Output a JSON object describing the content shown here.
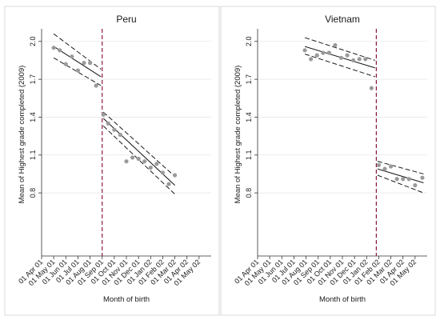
{
  "chart_data": [
    {
      "type": "scatter",
      "title": "Peru",
      "xlabel": "Month of birth",
      "ylabel": "Mean of Highest grade completed (2009)",
      "x_categories": [
        "01 Apr 01",
        "01 May 01",
        "01 Jun 01",
        "01 Jul 01",
        "01 Aug 01",
        "01 Sep 01",
        "01 Oct 01",
        "01 Nov 01",
        "01 Dec 01",
        "01 Jan 02",
        "01 Feb 02",
        "01 Mar 02",
        "01 Apr 02",
        "01 May 02"
      ],
      "yticks": [
        "0.8",
        "1.1",
        "1.4",
        "1.7",
        "2.0"
      ],
      "ylim": [
        0.3,
        2.1
      ],
      "cutoff_x": 5,
      "scatter": {
        "x": [
          1,
          1.5,
          2,
          2.5,
          3,
          3.5,
          4,
          4.5,
          5.1,
          5.5,
          6,
          6.5,
          7,
          7.5,
          8,
          8.5,
          9,
          9.5,
          10,
          10.5,
          11
        ],
        "y": [
          1.95,
          1.93,
          1.82,
          1.88,
          1.77,
          1.83,
          1.83,
          1.65,
          1.42,
          1.35,
          1.3,
          1.26,
          1.05,
          1.08,
          1.07,
          1.05,
          1.0,
          1.03,
          0.96,
          0.87,
          0.94
        ]
      },
      "fit_segments": [
        {
          "x": [
            1,
            4.9
          ],
          "y": [
            1.96,
            1.72
          ],
          "ci_upper": [
            2.06,
            1.78
          ],
          "ci_lower": [
            1.87,
            1.65
          ]
        },
        {
          "x": [
            5.1,
            11
          ],
          "y": [
            1.39,
            0.86
          ],
          "ci_upper": [
            1.44,
            0.93
          ],
          "ci_lower": [
            1.33,
            0.79
          ]
        }
      ]
    },
    {
      "type": "scatter",
      "title": "Vietnam",
      "xlabel": "Month of birth",
      "ylabel": "Mean of Highest grade completed (2009)",
      "x_categories": [
        "01 Apr 01",
        "01 May 01",
        "01 Jun 01",
        "01 Jul 01",
        "01 Aug 01",
        "01 Sep 01",
        "01 Oct 01",
        "01 Nov 01",
        "01 Dec 01",
        "01 Jan 02",
        "01 Feb 02",
        "01 Mar 02",
        "01 Apr 02",
        "01 May 02"
      ],
      "yticks": [
        "0.8",
        "1.1",
        "1.4",
        "1.7",
        "2.0"
      ],
      "ylim": [
        0.3,
        2.1
      ],
      "cutoff_x": 9.8,
      "scatter": {
        "x": [
          3.9,
          4.4,
          4.9,
          5.4,
          5.9,
          6.4,
          6.9,
          7.4,
          7.9,
          8.4,
          8.9,
          9.4,
          10.0,
          10.5,
          11.0,
          11.5,
          12.0,
          12.5,
          13.0,
          13.6
        ],
        "y": [
          1.93,
          1.86,
          1.89,
          1.91,
          1.91,
          1.97,
          1.87,
          1.89,
          1.85,
          1.86,
          1.86,
          1.63,
          1.02,
          0.99,
          1.01,
          0.91,
          0.91,
          0.91,
          0.86,
          0.92
        ]
      },
      "fit_segments": [
        {
          "x": [
            3.9,
            9.7
          ],
          "y": [
            1.96,
            1.79
          ],
          "ci_upper": [
            2.03,
            1.85
          ],
          "ci_lower": [
            1.9,
            1.72
          ]
        },
        {
          "x": [
            9.9,
            13.7
          ],
          "y": [
            0.99,
            0.88
          ],
          "ci_upper": [
            1.05,
            0.95
          ],
          "ci_lower": [
            0.94,
            0.8
          ]
        }
      ]
    }
  ]
}
